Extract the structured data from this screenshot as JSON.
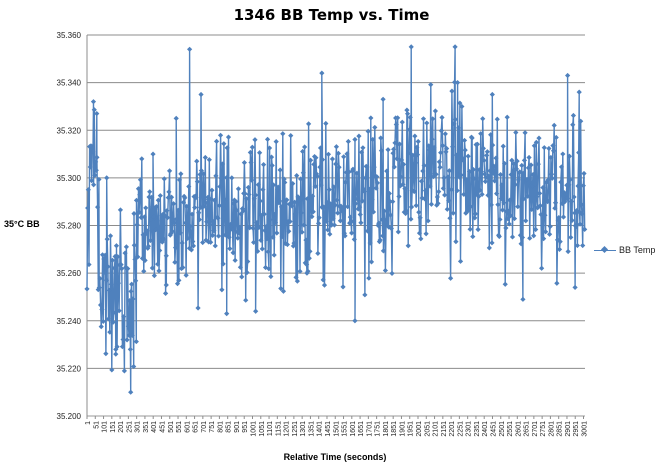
{
  "chart_data": {
    "type": "line",
    "title": "1346 BB Temp vs. Time",
    "xlabel": "Relative Time (seconds)",
    "ylabel": "35°C BB",
    "ylim": [
      35.2,
      35.36
    ],
    "y_ticks": [
      "35.200",
      "35.220",
      "35.240",
      "35.260",
      "35.280",
      "35.300",
      "35.320",
      "35.340",
      "35.360"
    ],
    "x_tick_labels": [
      "1",
      "51",
      "101",
      "151",
      "201",
      "251",
      "301",
      "351",
      "401",
      "451",
      "501",
      "551",
      "601",
      "651",
      "701",
      "751",
      "801",
      "851",
      "901",
      "951",
      "1001",
      "1051",
      "1101",
      "1151",
      "1201",
      "1251",
      "1301",
      "1351",
      "1401",
      "1451",
      "1501",
      "1551",
      "1601",
      "1651",
      "1701",
      "1751",
      "1801",
      "1851",
      "1901",
      "1951",
      "2001",
      "2051",
      "2101",
      "2151",
      "2201",
      "2251",
      "2301",
      "2351",
      "2401",
      "2451",
      "2501",
      "2551",
      "2601",
      "2651",
      "2701",
      "2751",
      "2801",
      "2851",
      "2901",
      "2951",
      "3001"
    ],
    "x_range": [
      1,
      3010
    ],
    "grid": "horizontal",
    "legend_position": "right",
    "series": [
      {
        "name": "BB Temp",
        "color": "#4f81bd",
        "marker": "diamond",
        "segments": [
          {
            "x_start": 1,
            "x_end": 75,
            "mean": 35.298,
            "spread": 0.016,
            "spikes": [
              [
                40,
                35.332
              ],
              [
                60,
                35.327
              ]
            ]
          },
          {
            "x_start": 75,
            "x_end": 300,
            "mean": 35.252,
            "spread": 0.016,
            "spikes": [
              [
                120,
                35.3
              ],
              [
                175,
                35.226
              ],
              [
                265,
                35.21
              ],
              [
                285,
                35.285
              ]
            ]
          },
          {
            "x_start": 300,
            "x_end": 600,
            "mean": 35.281,
            "spread": 0.013,
            "spikes": [
              [
                400,
                35.31
              ],
              [
                480,
                35.255
              ],
              [
                540,
                35.325
              ]
            ]
          },
          {
            "x_start": 600,
            "x_end": 1100,
            "mean": 35.287,
            "spread": 0.016,
            "spikes": [
              [
                621,
                35.354
              ],
              [
                690,
                35.335
              ],
              [
                845,
                35.243
              ],
              [
                1020,
                35.244
              ]
            ]
          },
          {
            "x_start": 1100,
            "x_end": 1500,
            "mean": 35.288,
            "spread": 0.016,
            "spikes": [
              [
                1420,
                35.344
              ],
              [
                1330,
                35.26
              ]
            ]
          },
          {
            "x_start": 1500,
            "x_end": 1850,
            "mean": 35.291,
            "spread": 0.016,
            "spikes": [
              [
                1620,
                35.24
              ],
              [
                1790,
                35.333
              ]
            ]
          },
          {
            "x_start": 1850,
            "x_end": 2300,
            "mean": 35.301,
            "spread": 0.017,
            "spikes": [
              [
                1960,
                35.355
              ],
              [
                2225,
                35.355
              ],
              [
                2240,
                35.34
              ]
            ]
          },
          {
            "x_start": 2300,
            "x_end": 3010,
            "mean": 35.295,
            "spread": 0.016,
            "spikes": [
              [
                2450,
                35.335
              ],
              [
                2635,
                35.249
              ],
              [
                2905,
                35.343
              ],
              [
                2975,
                35.336
              ],
              [
                2950,
                35.254
              ]
            ]
          }
        ]
      }
    ]
  }
}
